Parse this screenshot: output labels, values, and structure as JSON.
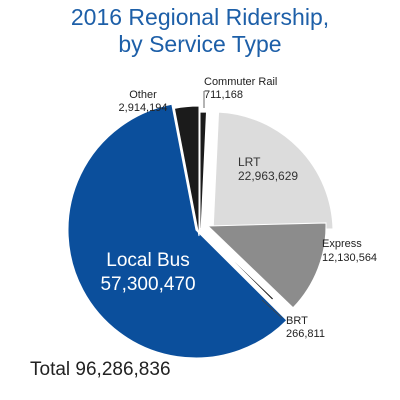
{
  "header": {
    "title_line1": "2016 Regional Ridership,",
    "title_line2": "by Service Type"
  },
  "footer": {
    "total_label": "Total 96,286,836"
  },
  "colors": {
    "title": "#1d5fa8",
    "local_bus": "#0b4f9c",
    "lrt": "#dcdcdc",
    "express": "#8c8c8c",
    "brt": "#1b1b1b",
    "other": "#1b1b1b",
    "commuter_rail": "#1b1b1b"
  },
  "chart_data": {
    "type": "pie",
    "title": "2016 Regional Ridership, by Service Type",
    "total": 96286836,
    "slices": [
      {
        "key": "commuter_rail",
        "name": "Commuter Rail",
        "value": 711168,
        "value_label": "711,168"
      },
      {
        "key": "lrt",
        "name": "LRT",
        "value": 22963629,
        "value_label": "22,963,629"
      },
      {
        "key": "express",
        "name": "Express",
        "value": 12130564,
        "value_label": "12,130,564"
      },
      {
        "key": "brt",
        "name": "BRT",
        "value": 266811,
        "value_label": "266,811"
      },
      {
        "key": "local_bus",
        "name": "Local Bus",
        "value": 57300470,
        "value_label": "57,300,470"
      },
      {
        "key": "other",
        "name": "Other",
        "value": 2914194,
        "value_label": "2,914,194"
      }
    ]
  }
}
